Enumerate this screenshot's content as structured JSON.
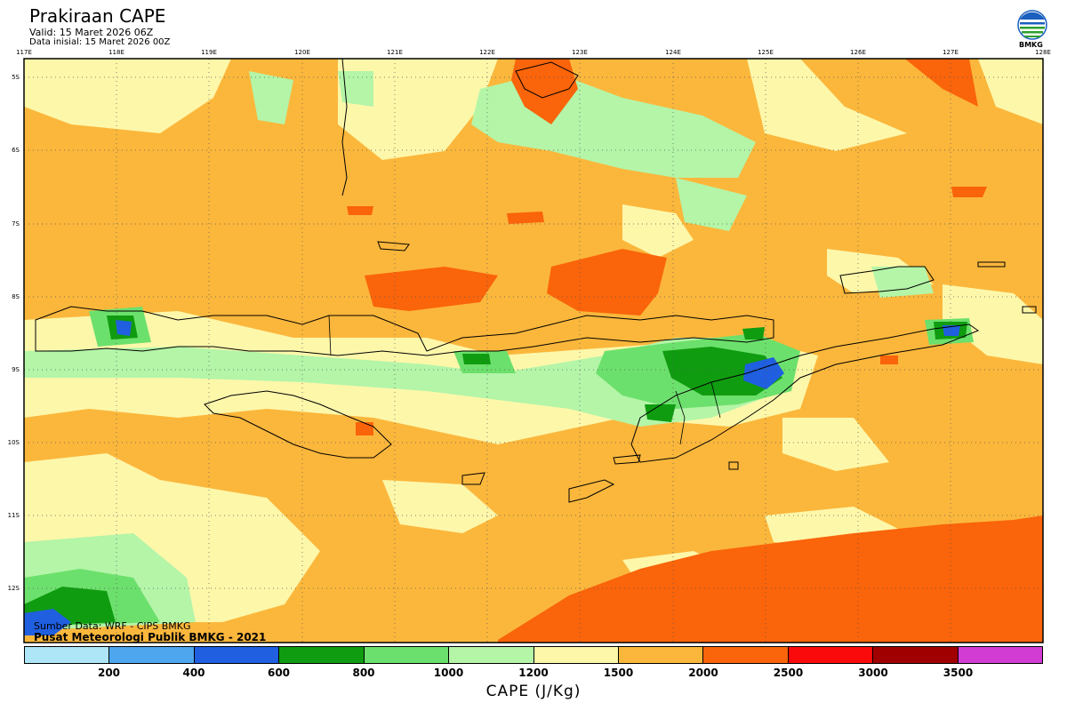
{
  "header": {
    "title": "Prakiraan CAPE",
    "valid": "Valid: 15 Maret 2026 06Z",
    "initial": "Data inisial: 15 Maret 2026 00Z"
  },
  "logo": {
    "text": "BMKG",
    "icon": "bmkg-logo-icon"
  },
  "map": {
    "lon_ticks": [
      "117E",
      "118E",
      "119E",
      "120E",
      "121E",
      "122E",
      "123E",
      "124E",
      "125E",
      "126E",
      "127E",
      "128E"
    ],
    "lat_ticks": [
      "5S",
      "6S",
      "7S",
      "8S",
      "9S",
      "10S",
      "11S",
      "12S"
    ]
  },
  "credits": {
    "source": "Sumber Data: WRF - CIPS BMKG",
    "org": "Pusat Meteorologi Publik BMKG - 2021"
  },
  "colorbar": {
    "title": "CAPE (J/Kg)",
    "labels": [
      "200",
      "400",
      "600",
      "800",
      "1000",
      "1200",
      "1500",
      "2000",
      "2500",
      "3000",
      "3500"
    ],
    "colors": [
      "#aee6f8",
      "#4ea6ef",
      "#1f5fe0",
      "#109c10",
      "#6ce06c",
      "#b4f5a8",
      "#fdf7aa",
      "#fbb73c",
      "#fa640a",
      "#fa0a0a",
      "#a00000",
      "#d23cd2"
    ]
  }
}
